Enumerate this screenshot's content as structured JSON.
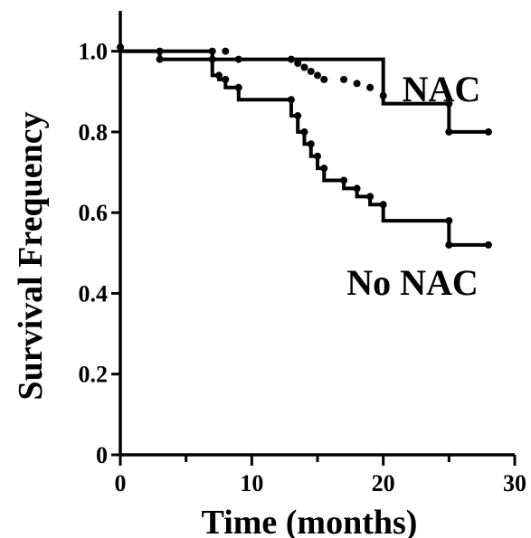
{
  "chart_data": {
    "type": "line",
    "subtype": "kaplan-meier step",
    "xlabel": "Time (months)",
    "ylabel": "Survival Frequency",
    "xlim": [
      0,
      30
    ],
    "ylim": [
      0,
      1.1
    ],
    "x_ticks": [
      0,
      10,
      20,
      30
    ],
    "x_tick_labels": [
      "0",
      "10",
      "20",
      "30"
    ],
    "x_minor_ticks": [
      5,
      15,
      25
    ],
    "y_ticks": [
      0,
      0.2,
      0.4,
      0.6,
      0.8,
      1.0
    ],
    "y_tick_labels": [
      "0",
      "0.2",
      "0.4",
      "0.6",
      "0.8",
      "1.0"
    ],
    "grid": false,
    "series": [
      {
        "name": "NAC",
        "label_text": "NAC",
        "steps": [
          [
            0,
            1.0
          ],
          [
            3,
            1.0
          ],
          [
            7,
            0.98
          ],
          [
            20,
            0.87
          ],
          [
            25,
            0.8
          ],
          [
            28,
            0.8
          ]
        ],
        "censor_points": [
          [
            0,
            1.01
          ],
          [
            3,
            1.0
          ],
          [
            7,
            1.0
          ],
          [
            8,
            1.0
          ],
          [
            9,
            0.98
          ],
          [
            13,
            0.98
          ],
          [
            13.5,
            0.97
          ],
          [
            14,
            0.96
          ],
          [
            14.5,
            0.95
          ],
          [
            15,
            0.94
          ],
          [
            15.5,
            0.93
          ],
          [
            17,
            0.93
          ],
          [
            18,
            0.92
          ],
          [
            19,
            0.91
          ],
          [
            20,
            0.89
          ],
          [
            25,
            0.87
          ],
          [
            25,
            0.8
          ],
          [
            28,
            0.8
          ]
        ]
      },
      {
        "name": "No NAC",
        "label_text": "No NAC",
        "steps": [
          [
            0,
            1.0
          ],
          [
            3,
            0.98
          ],
          [
            7,
            0.94
          ],
          [
            7.5,
            0.93
          ],
          [
            8,
            0.91
          ],
          [
            9,
            0.88
          ],
          [
            13,
            0.84
          ],
          [
            13.5,
            0.8
          ],
          [
            14,
            0.77
          ],
          [
            14.5,
            0.74
          ],
          [
            15,
            0.71
          ],
          [
            15.5,
            0.68
          ],
          [
            17,
            0.66
          ],
          [
            18,
            0.64
          ],
          [
            19,
            0.62
          ],
          [
            20,
            0.58
          ],
          [
            25,
            0.52
          ],
          [
            28,
            0.52
          ]
        ],
        "censor_points": [
          [
            0,
            1.01
          ],
          [
            3,
            0.98
          ],
          [
            7,
            0.98
          ],
          [
            7.5,
            0.94
          ],
          [
            8,
            0.93
          ],
          [
            9,
            0.91
          ],
          [
            13,
            0.88
          ],
          [
            13.5,
            0.84
          ],
          [
            14,
            0.8
          ],
          [
            14.5,
            0.77
          ],
          [
            15,
            0.74
          ],
          [
            15.5,
            0.71
          ],
          [
            17,
            0.68
          ],
          [
            18,
            0.66
          ],
          [
            19,
            0.64
          ],
          [
            20,
            0.62
          ],
          [
            25,
            0.58
          ],
          [
            25,
            0.52
          ],
          [
            28,
            0.52
          ]
        ]
      }
    ]
  }
}
